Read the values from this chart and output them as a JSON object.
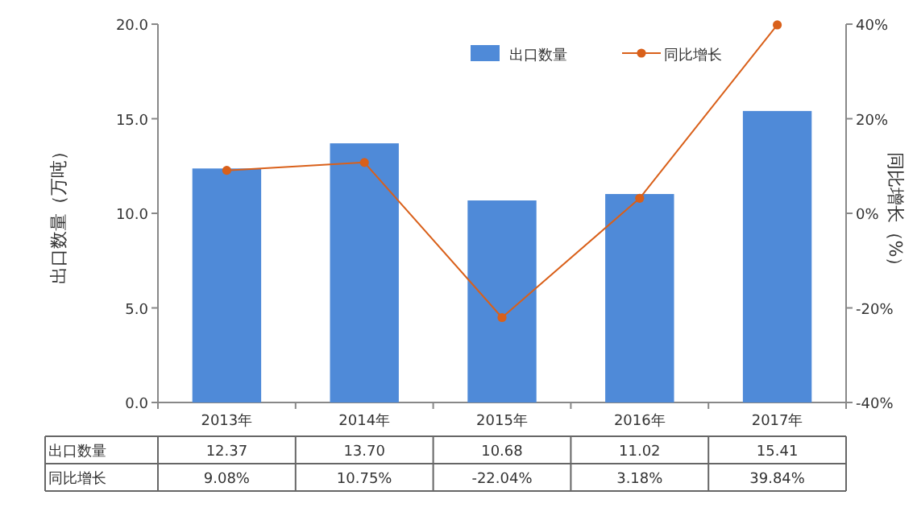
{
  "chart_data": {
    "type": "bar",
    "categories": [
      "2013年",
      "2014年",
      "2015年",
      "2016年",
      "2017年"
    ],
    "ylabel": "出口数量（万吨）",
    "y2label": "同比增长（%）",
    "ylim": [
      0,
      20
    ],
    "yticks": [
      {
        "value": 0,
        "label": "0.0"
      },
      {
        "value": 5,
        "label": "5.0"
      },
      {
        "value": 10,
        "label": "10.0"
      },
      {
        "value": 15,
        "label": "15.0"
      },
      {
        "value": 20,
        "label": "20.0"
      }
    ],
    "y2lim": [
      -40,
      40
    ],
    "y2ticks": [
      {
        "value": -40,
        "label": "-40%"
      },
      {
        "value": -20,
        "label": "-20%"
      },
      {
        "value": 0,
        "label": "0%"
      },
      {
        "value": 20,
        "label": "20%"
      },
      {
        "value": 40,
        "label": "40%"
      }
    ],
    "legend": "top right",
    "grid": false,
    "series": [
      {
        "name": "出口数量",
        "color": "#4f8ad8",
        "values": [
          12.37,
          13.7,
          10.68,
          11.02,
          15.41
        ],
        "value_labels": [
          "12.37",
          "13.70",
          "10.68",
          "11.02",
          "15.41"
        ]
      },
      {
        "name": "同比增长",
        "type": "line",
        "axis": "y2",
        "color": "#d9601a",
        "marker": "circle",
        "values": [
          9.08,
          10.75,
          -22.04,
          3.18,
          39.84
        ],
        "value_labels": [
          "9.08%",
          "10.75%",
          "-22.04%",
          "3.18%",
          "39.84%"
        ]
      }
    ]
  }
}
